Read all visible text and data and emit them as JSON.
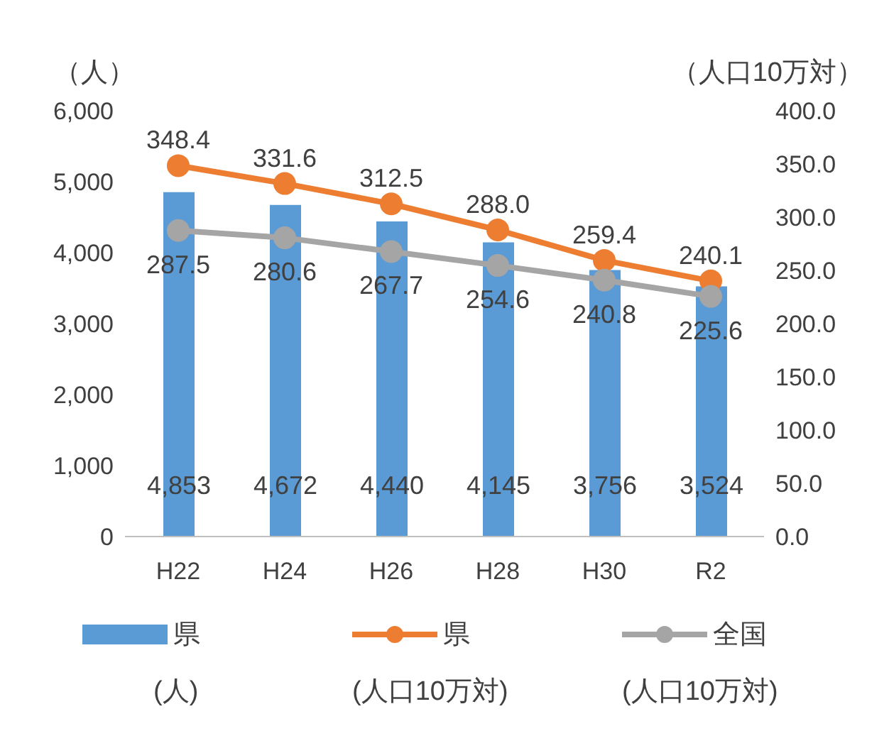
{
  "chart_data": {
    "type": "bar",
    "ylabel": "（人）",
    "y2label": "（人口10万対）",
    "categories": [
      "H22",
      "H24",
      "H26",
      "H28",
      "H30",
      "R2"
    ],
    "series": [
      {
        "name": "県(人)",
        "color": "#5b9bd5",
        "values": [
          4853,
          4672,
          4440,
          4145,
          3756,
          3524
        ],
        "value_labels": [
          "4,853",
          "4,672",
          "4,440",
          "4,145",
          "3,756",
          "3,524"
        ]
      },
      {
        "name": "県(人口10万対)",
        "type": "line",
        "axis": "y2",
        "color": "#ed7d31",
        "values": [
          348.4,
          331.6,
          312.5,
          288.0,
          259.4,
          240.1
        ],
        "value_labels": [
          "348.4",
          "331.6",
          "312.5",
          "288.0",
          "259.4",
          "240.1"
        ]
      },
      {
        "name": "全国(人口10万対)",
        "type": "line",
        "axis": "y2",
        "color": "#a5a5a5",
        "values": [
          287.5,
          280.6,
          267.7,
          254.6,
          240.8,
          225.6
        ],
        "value_labels": [
          "287.5",
          "280.6",
          "267.7",
          "254.6",
          "240.8",
          "225.6"
        ]
      }
    ],
    "ylim": [
      0,
      6000
    ],
    "yticks": [
      0,
      {
        "value": 1000,
        "label": "1,000"
      },
      {
        "value": 2000,
        "label": "2,000"
      },
      {
        "value": 3000,
        "label": "3,000"
      },
      {
        "value": 4000,
        "label": "4,000"
      },
      {
        "value": 5000,
        "label": "5,000"
      },
      {
        "value": 6000,
        "label": "6,000"
      }
    ],
    "y2lim": [
      0,
      400
    ],
    "y2ticks": [
      {
        "value": 0,
        "label": "0.0"
      },
      {
        "value": 50,
        "label": "50.0"
      },
      {
        "value": 100,
        "label": "100.0"
      },
      {
        "value": 150,
        "label": "150.0"
      },
      {
        "value": 200,
        "label": "200.0"
      },
      {
        "value": 250,
        "label": "250.0"
      },
      {
        "value": 300,
        "label": "300.0"
      },
      {
        "value": 350,
        "label": "350.0"
      },
      {
        "value": 400,
        "label": "400.0"
      }
    ],
    "grid": false,
    "legend": "bottom",
    "marker": "circle"
  }
}
